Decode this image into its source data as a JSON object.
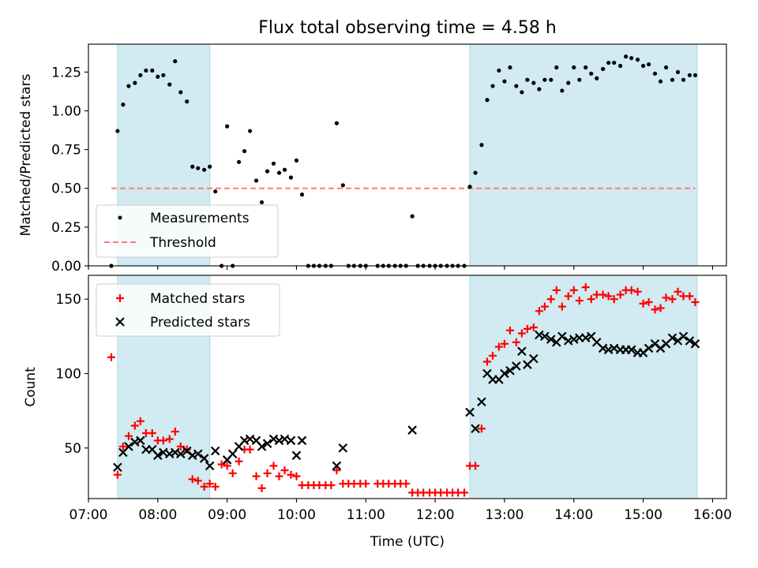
{
  "chart_data": [
    {
      "type": "scatter",
      "title": "Flux total observing time = 4.58 h",
      "xlabel": "",
      "ylabel": "Matched/Predicted stars",
      "xlim": [
        7.0,
        16.2
      ],
      "ylim": [
        0.0,
        1.43
      ],
      "xticks": [
        7,
        8,
        9,
        10,
        11,
        12,
        13,
        14,
        15,
        16
      ],
      "yticks": [
        0.0,
        0.25,
        0.5,
        0.75,
        1.0,
        1.25
      ],
      "ytick_labels": [
        "0.00",
        "0.25",
        "0.50",
        "0.75",
        "1.00",
        "1.25"
      ],
      "shaded_intervals": [
        [
          7.42,
          8.75
        ],
        [
          12.5,
          15.78
        ]
      ],
      "shade_color": "#add8e6",
      "legend_position": "lower-left",
      "threshold": {
        "name": "Threshold",
        "value": 0.5,
        "x_range": [
          7.33,
          15.75
        ],
        "color": "#ff7a7a"
      },
      "series": [
        {
          "name": "Measurements",
          "color": "#000000",
          "x": [
            7.33,
            7.42,
            7.5,
            7.58,
            7.67,
            7.75,
            7.83,
            7.92,
            8.0,
            8.08,
            8.17,
            8.25,
            8.33,
            8.42,
            8.5,
            8.58,
            8.67,
            8.75,
            8.83,
            8.92,
            9.0,
            9.08,
            9.17,
            9.25,
            9.33,
            9.42,
            9.5,
            9.58,
            9.67,
            9.75,
            9.83,
            9.92,
            10.0,
            10.08,
            10.17,
            10.25,
            10.33,
            10.42,
            10.5,
            10.58,
            10.67,
            10.75,
            10.83,
            10.92,
            11.0,
            11.17,
            11.25,
            11.33,
            11.42,
            11.5,
            11.58,
            11.67,
            11.75,
            11.83,
            11.92,
            12.0,
            12.08,
            12.17,
            12.25,
            12.33,
            12.42,
            12.5,
            12.58,
            12.67,
            12.75,
            12.83,
            12.92,
            13.0,
            13.08,
            13.17,
            13.25,
            13.33,
            13.42,
            13.5,
            13.58,
            13.67,
            13.75,
            13.83,
            13.92,
            14.0,
            14.08,
            14.17,
            14.25,
            14.33,
            14.42,
            14.5,
            14.58,
            14.67,
            14.75,
            14.83,
            14.92,
            15.0,
            15.08,
            15.17,
            15.25,
            15.33,
            15.42,
            15.5,
            15.58,
            15.67,
            15.75
          ],
          "y": [
            0.0,
            0.87,
            1.04,
            1.16,
            1.18,
            1.23,
            1.26,
            1.26,
            1.22,
            1.23,
            1.17,
            1.32,
            1.12,
            1.06,
            0.64,
            0.63,
            0.62,
            0.64,
            0.48,
            0.0,
            0.9,
            0.0,
            0.67,
            0.74,
            0.87,
            0.55,
            0.41,
            0.61,
            0.66,
            0.6,
            0.62,
            0.57,
            0.68,
            0.46,
            0.0,
            0.0,
            0.0,
            0.0,
            0.0,
            0.92,
            0.52,
            0.0,
            0.0,
            0.0,
            0.0,
            0.0,
            0.0,
            0.0,
            0.0,
            0.0,
            0.0,
            0.32,
            0.0,
            0.0,
            0.0,
            0.0,
            0.0,
            0.0,
            0.0,
            0.0,
            0.0,
            0.51,
            0.6,
            0.78,
            1.07,
            1.16,
            1.26,
            1.19,
            1.28,
            1.16,
            1.12,
            1.2,
            1.18,
            1.14,
            1.2,
            1.2,
            1.28,
            1.13,
            1.18,
            1.28,
            1.2,
            1.28,
            1.24,
            1.21,
            1.27,
            1.31,
            1.31,
            1.29,
            1.35,
            1.34,
            1.33,
            1.29,
            1.3,
            1.24,
            1.19,
            1.28,
            1.2,
            1.25,
            1.2,
            1.23,
            1.23
          ]
        }
      ]
    },
    {
      "type": "scatter",
      "title": "",
      "xlabel": "Time (UTC)",
      "ylabel": "Count",
      "xlim": [
        7.0,
        16.2
      ],
      "ylim": [
        16,
        166
      ],
      "xticks": [
        7,
        8,
        9,
        10,
        11,
        12,
        13,
        14,
        15,
        16
      ],
      "xtick_labels": [
        "07:00",
        "08:00",
        "09:00",
        "10:00",
        "11:00",
        "12:00",
        "13:00",
        "14:00",
        "15:00",
        "16:00"
      ],
      "yticks": [
        50,
        100,
        150
      ],
      "ytick_labels": [
        "50",
        "100",
        "150"
      ],
      "shaded_intervals": [
        [
          7.42,
          8.75
        ],
        [
          12.5,
          15.78
        ]
      ],
      "shade_color": "#add8e6",
      "legend_position": "top-left",
      "series": [
        {
          "name": "Matched stars",
          "marker": "plus",
          "color": "#ff0000",
          "x": [
            7.33,
            7.42,
            7.5,
            7.58,
            7.67,
            7.75,
            7.83,
            7.92,
            8.0,
            8.08,
            8.17,
            8.25,
            8.33,
            8.42,
            8.5,
            8.58,
            8.67,
            8.75,
            8.83,
            8.92,
            9.0,
            9.08,
            9.17,
            9.25,
            9.33,
            9.42,
            9.5,
            9.58,
            9.67,
            9.75,
            9.83,
            9.92,
            10.0,
            10.08,
            10.17,
            10.25,
            10.33,
            10.42,
            10.5,
            10.58,
            10.67,
            10.75,
            10.83,
            10.92,
            11.0,
            11.17,
            11.25,
            11.33,
            11.42,
            11.5,
            11.58,
            11.67,
            11.75,
            11.83,
            11.92,
            12.0,
            12.08,
            12.17,
            12.25,
            12.33,
            12.42,
            12.5,
            12.58,
            12.67,
            12.75,
            12.83,
            12.92,
            13.0,
            13.08,
            13.17,
            13.25,
            13.33,
            13.42,
            13.5,
            13.58,
            13.67,
            13.75,
            13.83,
            13.92,
            14.0,
            14.08,
            14.17,
            14.25,
            14.33,
            14.42,
            14.5,
            14.58,
            14.67,
            14.75,
            14.83,
            14.92,
            15.0,
            15.08,
            15.17,
            15.25,
            15.33,
            15.42,
            15.5,
            15.58,
            15.67,
            15.75
          ],
          "y": [
            111,
            32,
            51,
            58,
            65,
            68,
            60,
            60,
            55,
            55,
            56,
            61,
            51,
            49,
            29,
            28,
            24,
            26,
            24,
            39,
            38,
            33,
            41,
            49,
            49,
            31,
            23,
            33,
            38,
            31,
            35,
            32,
            31,
            25,
            25,
            25,
            25,
            25,
            25,
            35,
            26,
            26,
            26,
            26,
            26,
            26,
            26,
            26,
            26,
            26,
            26,
            20,
            20,
            20,
            20,
            20,
            20,
            20,
            20,
            20,
            20,
            38,
            38,
            63,
            108,
            112,
            118,
            120,
            129,
            121,
            127,
            130,
            131,
            142,
            145,
            150,
            156,
            145,
            152,
            156,
            149,
            158,
            150,
            153,
            153,
            152,
            150,
            153,
            156,
            156,
            155,
            147,
            148,
            143,
            144,
            151,
            150,
            155,
            152,
            152,
            148
          ]
        },
        {
          "name": "Predicted stars",
          "marker": "x",
          "color": "#000000",
          "x": [
            7.42,
            7.5,
            7.58,
            7.67,
            7.75,
            7.83,
            7.92,
            8.0,
            8.08,
            8.17,
            8.25,
            8.33,
            8.42,
            8.5,
            8.58,
            8.67,
            8.75,
            8.83,
            9.0,
            9.08,
            9.17,
            9.25,
            9.33,
            9.42,
            9.5,
            9.58,
            9.67,
            9.75,
            9.83,
            9.92,
            10.0,
            10.08,
            10.58,
            10.67,
            11.67,
            12.5,
            12.58,
            12.67,
            12.75,
            12.83,
            12.92,
            13.0,
            13.08,
            13.17,
            13.25,
            13.33,
            13.42,
            13.5,
            13.58,
            13.67,
            13.75,
            13.83,
            13.92,
            14.0,
            14.08,
            14.17,
            14.25,
            14.33,
            14.42,
            14.5,
            14.58,
            14.67,
            14.75,
            14.83,
            14.92,
            15.0,
            15.08,
            15.17,
            15.25,
            15.33,
            15.42,
            15.5,
            15.58,
            15.67,
            15.75
          ],
          "y": [
            37,
            47,
            51,
            54,
            55,
            49,
            49,
            45,
            47,
            46,
            47,
            46,
            48,
            45,
            46,
            43,
            38,
            48,
            42,
            46,
            51,
            55,
            56,
            55,
            51,
            53,
            56,
            55,
            56,
            55,
            45,
            55,
            38,
            50,
            62,
            74,
            63,
            81,
            100,
            96,
            96,
            100,
            102,
            105,
            115,
            106,
            110,
            126,
            125,
            123,
            121,
            125,
            122,
            123,
            124,
            124,
            125,
            121,
            117,
            116,
            117,
            116,
            116,
            116,
            114,
            114,
            117,
            120,
            117,
            120,
            124,
            122,
            125,
            122,
            120
          ]
        }
      ]
    }
  ]
}
